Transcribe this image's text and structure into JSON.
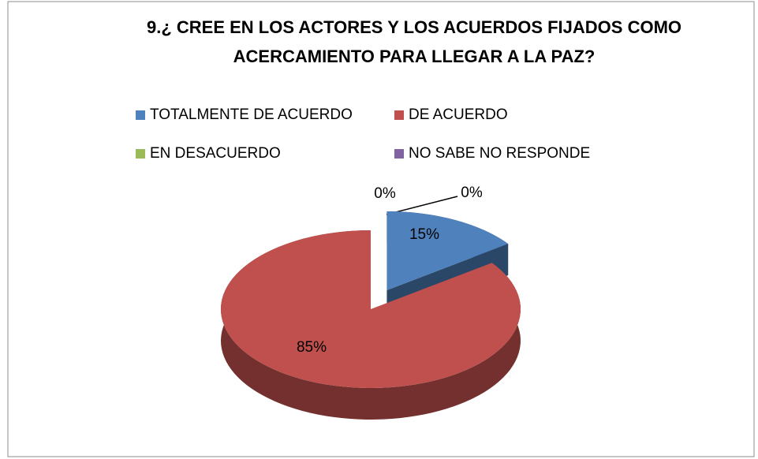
{
  "chart_data": {
    "type": "pie",
    "title": "9.¿ CREE EN LOS ACTORES Y LOS ACUERDOS FIJADOS COMO ACERCAMIENTO PARA LLEGAR A LA PAZ?",
    "title_lines": [
      "9.¿ CREE EN LOS ACTORES Y LOS ACUERDOS FIJADOS COMO",
      "ACERCAMIENTO PARA LLEGAR A LA PAZ?"
    ],
    "categories": [
      "TOTALMENTE DE ACUERDO",
      "DE ACUERDO",
      "EN DESACUERDO",
      "NO SABE NO RESPONDE"
    ],
    "values": [
      15,
      85,
      0,
      0
    ],
    "value_labels": [
      "15%",
      "85%",
      "0%",
      "0%"
    ],
    "colors": [
      "#4f81bd",
      "#c0504d",
      "#9bbb59",
      "#8064a2"
    ],
    "legend": "top"
  }
}
